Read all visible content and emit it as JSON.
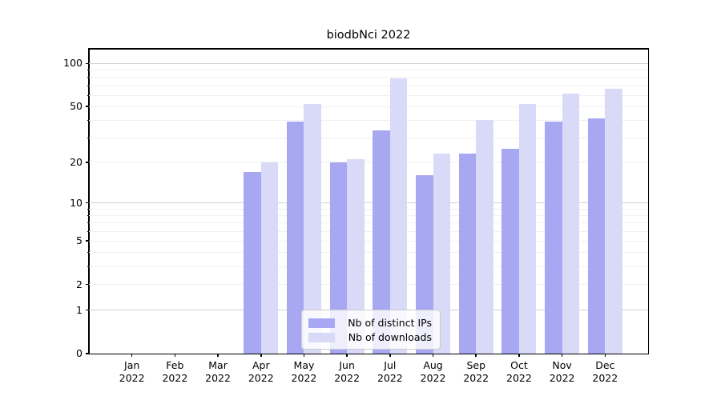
{
  "title": "biodbNci 2022",
  "chart_data": {
    "type": "bar",
    "categories": [
      "Jan",
      "Feb",
      "Mar",
      "Apr",
      "May",
      "Jun",
      "Jul",
      "Aug",
      "Sep",
      "Oct",
      "Nov",
      "Dec"
    ],
    "year": "2022",
    "series": [
      {
        "name": "Nb of distinct IPs",
        "color": "#a8a8f2",
        "values": [
          0,
          0,
          0,
          17,
          39,
          20,
          34,
          16,
          23,
          25,
          39,
          41
        ]
      },
      {
        "name": "Nb of downloads",
        "color": "#d9d9f8",
        "values": [
          0,
          0,
          0,
          20,
          52,
          21,
          79,
          23,
          40,
          52,
          62,
          67
        ]
      }
    ],
    "yscale": "log1p",
    "ylim": [
      0,
      127
    ],
    "y_ticks": [
      {
        "label": "0",
        "value": 0
      },
      {
        "label": "1",
        "value": 1
      },
      {
        "label": "2",
        "value": 2
      },
      {
        "label": "5",
        "value": 5
      },
      {
        "label": "10",
        "value": 10
      },
      {
        "label": "20",
        "value": 20
      },
      {
        "label": "50",
        "value": 50
      },
      {
        "label": "100",
        "value": 100
      }
    ],
    "y_major_gridlines": [
      1,
      10,
      100
    ],
    "y_minor_gridlines": [
      2,
      3,
      4,
      5,
      6,
      7,
      8,
      9,
      20,
      30,
      40,
      50,
      60,
      70,
      80,
      90
    ],
    "grid": "on",
    "legend_position": "lower center"
  },
  "legend": {
    "items": [
      {
        "label": "Nb of distinct IPs",
        "color": "#a8a8f2"
      },
      {
        "label": "Nb of downloads",
        "color": "#d9d9f8"
      }
    ]
  }
}
